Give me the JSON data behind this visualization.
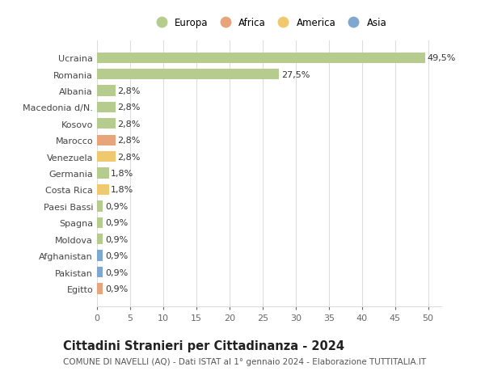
{
  "countries": [
    "Ucraina",
    "Romania",
    "Albania",
    "Macedonia d/N.",
    "Kosovo",
    "Marocco",
    "Venezuela",
    "Germania",
    "Costa Rica",
    "Paesi Bassi",
    "Spagna",
    "Moldova",
    "Afghanistan",
    "Pakistan",
    "Egitto"
  ],
  "values": [
    49.5,
    27.5,
    2.8,
    2.8,
    2.8,
    2.8,
    2.8,
    1.8,
    1.8,
    0.9,
    0.9,
    0.9,
    0.9,
    0.9,
    0.9
  ],
  "labels": [
    "49,5%",
    "27,5%",
    "2,8%",
    "2,8%",
    "2,8%",
    "2,8%",
    "2,8%",
    "1,8%",
    "1,8%",
    "0,9%",
    "0,9%",
    "0,9%",
    "0,9%",
    "0,9%",
    "0,9%"
  ],
  "continents": [
    "Europa",
    "Europa",
    "Europa",
    "Europa",
    "Europa",
    "Africa",
    "America",
    "Europa",
    "America",
    "Europa",
    "Europa",
    "Europa",
    "Asia",
    "Asia",
    "Africa"
  ],
  "continent_colors": {
    "Europa": "#b5cc8e",
    "Africa": "#e8a47a",
    "America": "#f0c96e",
    "Asia": "#7ea8d0"
  },
  "legend_order": [
    "Europa",
    "Africa",
    "America",
    "Asia"
  ],
  "xlim": [
    0,
    52
  ],
  "xticks": [
    0,
    5,
    10,
    15,
    20,
    25,
    30,
    35,
    40,
    45,
    50
  ],
  "title": "Cittadini Stranieri per Cittadinanza - 2024",
  "subtitle": "COMUNE DI NAVELLI (AQ) - Dati ISTAT al 1° gennaio 2024 - Elaborazione TUTTITALIA.IT",
  "background_color": "#ffffff",
  "grid_color": "#dddddd",
  "bar_height": 0.65,
  "title_fontsize": 10.5,
  "subtitle_fontsize": 7.5,
  "tick_fontsize": 8,
  "label_fontsize": 8,
  "legend_fontsize": 8.5
}
